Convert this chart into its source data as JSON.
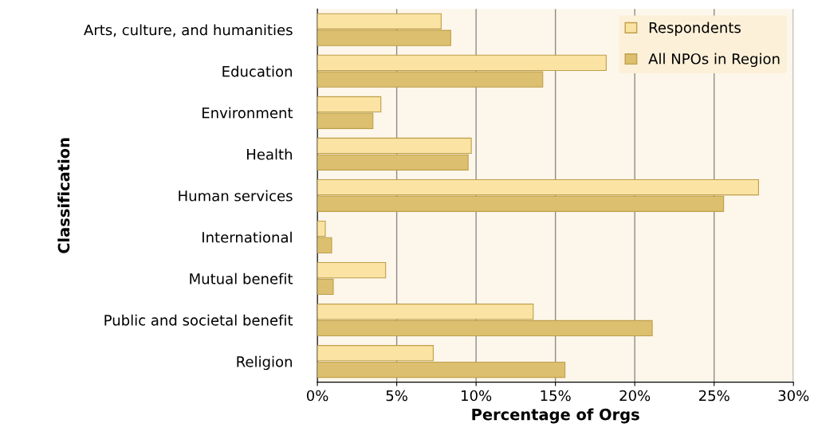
{
  "chart_data": {
    "type": "bar",
    "orientation": "horizontal",
    "xlabel": "Percentage of Orgs",
    "ylabel": "Classification",
    "categories": [
      "Arts, culture, and humanities",
      "Education",
      "Environment",
      "Health",
      "Human services",
      "International",
      "Mutual benefit",
      "Public and societal benefit",
      "Religion"
    ],
    "series": [
      {
        "name": "Respondents",
        "color": "#fae3a3",
        "values": [
          7.8,
          18.2,
          4.0,
          9.7,
          27.8,
          0.5,
          4.3,
          13.6,
          7.3
        ]
      },
      {
        "name": "All NPOs in Region",
        "color": "#dcc06f",
        "values": [
          8.4,
          14.2,
          3.5,
          9.5,
          25.6,
          0.9,
          1.0,
          21.1,
          15.6
        ]
      }
    ],
    "xlim": [
      0,
      30
    ],
    "xticks": [
      {
        "value": 0,
        "label": "0%"
      },
      {
        "value": 5,
        "label": "5%"
      },
      {
        "value": 10,
        "label": "10%"
      },
      {
        "value": 15,
        "label": "15%"
      },
      {
        "value": 20,
        "label": "20%"
      },
      {
        "value": 25,
        "label": "25%"
      },
      {
        "value": 30,
        "label": "30%"
      }
    ],
    "grid": "x",
    "legend": "top right"
  }
}
